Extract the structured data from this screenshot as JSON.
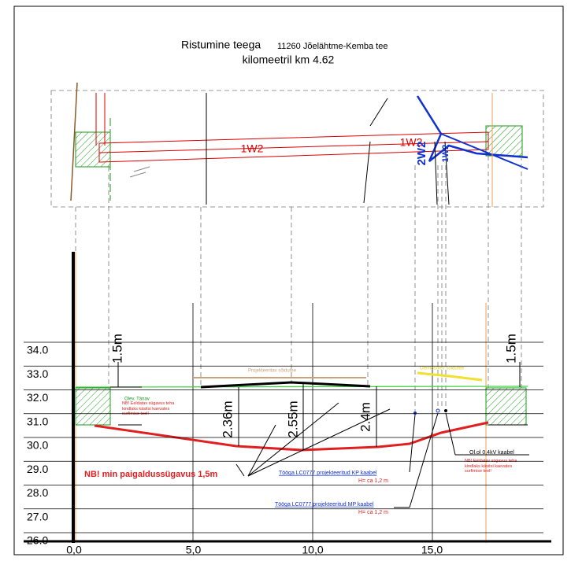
{
  "title": {
    "main": "Ristumine teega",
    "road": "11260 Jõelähtme-Kemba tee",
    "km": "kilomeetril km 4.62"
  },
  "plan": {
    "labels": [
      "1W2",
      "1W2",
      "2W2",
      "1W2"
    ]
  },
  "profile": {
    "y_axis": [
      "34.0",
      "33.0",
      "32.0",
      "31.0",
      "30.0",
      "29.0",
      "28.0",
      "27.0",
      "26.0"
    ],
    "x_axis": [
      "0,0",
      "5,0",
      "10,0",
      "15,0"
    ],
    "dimensions": [
      "1.5m",
      "1.5m",
      "2.36m",
      "2.55m",
      "2.4m"
    ],
    "road_labels": [
      "Projekteeritav sõidutee",
      "Olemasolev sõidutee",
      "Olev. Tänav"
    ],
    "notes": {
      "warning_left": "NB! Eeldatav sügavus teha kindlaks käsitsi kaevates surfimise teel!",
      "warning_right": "NB! Eeldatav sügavus teha kindlaks käsitsi kaevates surfimise teel!",
      "min_depth": "NB! min paigaldussügavus 1,5m",
      "kp_cable": "Tööga LC0777 projekteeritud KP kaabel",
      "kp_depth": "H= ca 1,2 m",
      "mp_cable": "Tööga LC0777 projekteeritud MP kaabel",
      "mp_depth": "H= ca 1,2 m",
      "existing_cable": "Ol.ol 0,4kV kaabel"
    }
  }
}
